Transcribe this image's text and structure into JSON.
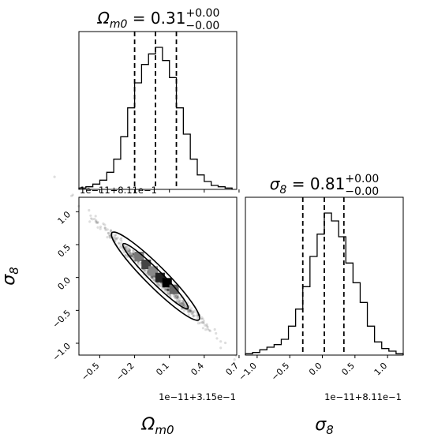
{
  "chart_data": [
    {
      "type": "histogram",
      "panel": "top-left",
      "title": {
        "symbol": "Ω",
        "subscript": "m0",
        "value": " = 0.31",
        "upper": "+0.00",
        "lower": "−0.00"
      },
      "bin_edges": [
        -0.68,
        -0.62,
        -0.56,
        -0.5,
        -0.44,
        -0.38,
        -0.32,
        -0.26,
        -0.2,
        -0.14,
        -0.08,
        -0.02,
        0.04,
        0.1,
        0.16,
        0.22,
        0.28,
        0.34,
        0.4,
        0.46,
        0.52,
        0.58,
        0.64
      ],
      "counts": [
        1,
        2,
        4,
        7,
        13,
        23,
        40,
        62,
        81,
        95,
        103,
        108,
        98,
        85,
        62,
        42,
        23,
        11,
        6,
        3,
        2,
        1
      ],
      "quantiles": [
        -0.2,
        -0.02,
        0.16
      ],
      "xlim": [
        -0.68,
        0.68
      ],
      "ylim": [
        0,
        120
      ]
    },
    {
      "type": "scatter",
      "panel": "bottom-left",
      "xlabel": "Ω_m0",
      "ylabel": "σ_8",
      "x_offset": "1e−11+3.15e−1",
      "y_offset": "1e−11+8.11e−1",
      "xticks": [
        "−0.5",
        "−0.2",
        "0.1",
        "0.4",
        "0.7"
      ],
      "xtick_values": [
        -0.5,
        -0.2,
        0.1,
        0.4,
        0.7
      ],
      "yticks": [
        "1.0",
        "0.5",
        "0.0",
        "−0.5",
        "−1.0"
      ],
      "ytick_values": [
        1.0,
        0.5,
        0.0,
        -0.5,
        -1.0
      ],
      "xlim": [
        -0.68,
        0.68
      ],
      "ylim": [
        -1.18,
        1.22
      ],
      "correlation": "strong negative",
      "contours": "1σ and 2σ ellipses",
      "density_squares": [
        {
          "x": -0.16,
          "y": 0.32,
          "shade": "#777777"
        },
        {
          "x": -0.1,
          "y": 0.2,
          "shade": "#444444"
        },
        {
          "x": -0.04,
          "y": 0.1,
          "shade": "#888888"
        },
        {
          "x": 0.02,
          "y": 0.0,
          "shade": "#222222"
        },
        {
          "x": 0.08,
          "y": -0.08,
          "shade": "#000000"
        },
        {
          "x": 0.14,
          "y": -0.18,
          "shade": "#666666"
        }
      ]
    },
    {
      "type": "histogram",
      "panel": "bottom-right",
      "title": {
        "symbol": "σ",
        "subscript": "8",
        "value": " = 0.81",
        "upper": "+0.00",
        "lower": "−0.00"
      },
      "xlabel": "σ_8",
      "x_offset": "1e−11+8.11e−1",
      "xticks": [
        "−1.0",
        "−0.5",
        "0.0",
        "0.5",
        "1.0"
      ],
      "xtick_values": [
        -1.0,
        -0.5,
        0.0,
        0.5,
        1.0
      ],
      "bin_edges": [
        -1.18,
        -1.07,
        -0.96,
        -0.85,
        -0.74,
        -0.63,
        -0.52,
        -0.41,
        -0.3,
        -0.19,
        -0.08,
        0.03,
        0.14,
        0.25,
        0.36,
        0.47,
        0.58,
        0.69,
        0.8,
        0.91,
        1.02,
        1.13,
        1.24
      ],
      "counts": [
        1,
        2,
        4,
        6,
        8,
        12,
        22,
        35,
        52,
        75,
        92,
        108,
        102,
        90,
        70,
        55,
        40,
        22,
        10,
        5,
        3,
        1
      ],
      "quantiles": [
        -0.3,
        0.03,
        0.33
      ],
      "xlim": [
        -1.18,
        1.24
      ],
      "ylim": [
        0,
        120
      ]
    }
  ]
}
